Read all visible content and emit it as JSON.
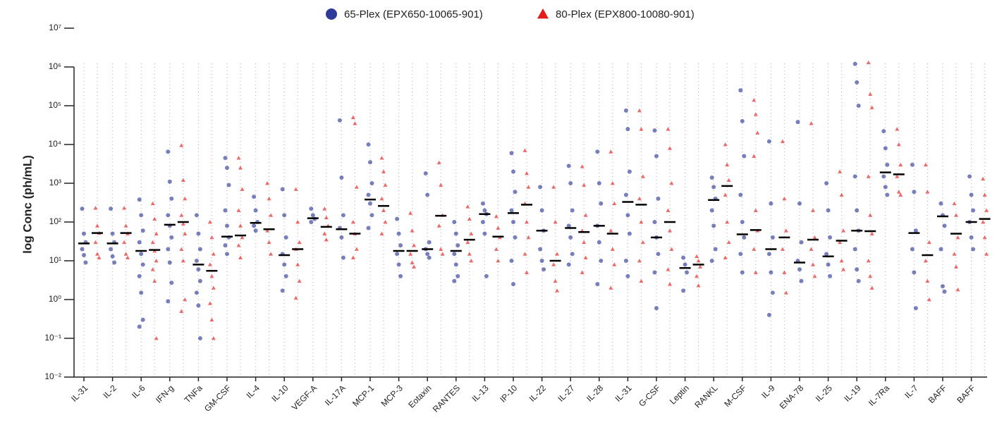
{
  "chart_data": {
    "type": "strip",
    "y_label": "log Conc (ph/mL)",
    "log_y": true,
    "grid": true,
    "categories": [
      "IL-31",
      "IL-2",
      "IL-6",
      "IFN-g",
      "TNFa",
      "GM-CSF",
      "IL-4",
      "IL-10",
      "VEGF-A",
      "IL-17A",
      "MCP-1",
      "MCP-3",
      "Eotaxin",
      "RANTES",
      "IL-13",
      "IP-10",
      "IL-22",
      "IL-27",
      "IL-28",
      "IL-31",
      "G-CSF",
      "Leptin",
      "RANKL",
      "M-CSF",
      "IL-9",
      "ENA-78",
      "IL-25",
      "IL-19",
      "IL-7Ra",
      "IL-7",
      "BAFF",
      "BAFF"
    ],
    "ylim": [
      0.01,
      10000000
    ],
    "yticks": [
      {
        "value": 0.01,
        "label": "10⁻²"
      },
      {
        "value": 0.1,
        "label": "10⁻¹"
      },
      {
        "value": 1,
        "label": "10⁰"
      },
      {
        "value": 10,
        "label": "10¹"
      },
      {
        "value": 100,
        "label": "10²"
      },
      {
        "value": 1000,
        "label": "10³"
      },
      {
        "value": 10000,
        "label": "10⁴"
      },
      {
        "value": 100000,
        "label": "10⁵"
      },
      {
        "value": 1000000,
        "label": "10⁶"
      },
      {
        "value": 10000000,
        "label": "10⁷"
      }
    ],
    "series": [
      {
        "name": "65-Plex (EPX650-10065-901)",
        "color": "#2e3a98",
        "marker": "circle",
        "medians": [
          28,
          28,
          18,
          85,
          8,
          42,
          95,
          14,
          125,
          65,
          380,
          18,
          20,
          18,
          160,
          170,
          60,
          70,
          80,
          330,
          40,
          6.5,
          370,
          48,
          20,
          9,
          13,
          60,
          1900,
          52,
          140,
          100
        ],
        "values": [
          [
            220,
            50,
            30,
            20,
            14,
            9
          ],
          [
            220,
            50,
            30,
            20,
            13,
            9
          ],
          [
            380,
            150,
            60,
            30,
            15,
            8,
            4,
            1.5,
            0.3,
            0.2
          ],
          [
            6500,
            1100,
            400,
            150,
            80,
            40,
            20,
            9,
            2.7,
            0.9
          ],
          [
            150,
            50,
            20,
            10,
            6,
            3,
            1.5,
            0.7,
            0.1
          ],
          [
            4500,
            2500,
            900,
            200,
            80,
            40,
            25,
            15
          ],
          [
            450,
            200,
            100,
            80,
            60
          ],
          [
            700,
            150,
            40,
            15,
            8,
            4,
            1.7
          ],
          [
            220,
            150,
            120,
            100
          ],
          [
            42000,
            1400,
            150,
            70,
            40,
            12
          ],
          [
            10000,
            3500,
            1000,
            500,
            300,
            150,
            70
          ],
          [
            120,
            50,
            25,
            15,
            8,
            4
          ],
          [
            1800,
            500,
            30,
            20,
            15,
            12
          ],
          [
            100,
            50,
            25,
            15,
            8,
            4,
            3
          ],
          [
            300,
            200,
            160,
            100,
            50,
            4
          ],
          [
            6000,
            2000,
            600,
            200,
            100,
            40,
            10,
            2.5
          ],
          [
            800,
            200,
            60,
            20,
            10,
            6
          ],
          [
            2800,
            1000,
            200,
            80,
            40,
            15,
            8
          ],
          [
            6500,
            1000,
            300,
            80,
            30,
            10,
            2.5
          ],
          [
            75000,
            25000,
            2000,
            500,
            150,
            50,
            10,
            4
          ],
          [
            23000,
            5000,
            400,
            100,
            40,
            15,
            5,
            0.6
          ],
          [
            12,
            8,
            5,
            1.7
          ],
          [
            1400,
            800,
            400,
            200,
            80,
            20,
            10
          ],
          [
            250000,
            40000,
            5000,
            500,
            100,
            40,
            15,
            5
          ],
          [
            12000,
            300,
            40,
            15,
            5,
            1.5,
            0.4
          ],
          [
            38000,
            300,
            30,
            10,
            6,
            3
          ],
          [
            1000,
            200,
            40,
            15,
            8,
            4
          ],
          [
            1200000,
            400000,
            100000,
            1500,
            200,
            60,
            20,
            6,
            3
          ],
          [
            22000,
            8000,
            3000,
            1500,
            800,
            500
          ],
          [
            3000,
            600,
            60,
            20,
            5,
            0.6
          ],
          [
            300,
            150,
            80,
            20,
            2.2,
            1.6
          ],
          [
            1500,
            500,
            200,
            100,
            40,
            20
          ]
        ]
      },
      {
        "name": "80-Plex (EPX800-10080-901)",
        "color": "#e31b1b",
        "marker": "triangle",
        "medians": [
          52,
          52,
          19,
          100,
          5.5,
          45,
          65,
          20,
          75,
          50,
          260,
          18,
          145,
          35,
          42,
          280,
          10,
          55,
          50,
          280,
          100,
          8,
          850,
          62,
          40,
          35,
          33,
          58,
          1700,
          14,
          50,
          120
        ],
        "values": [
          [
            230,
            80,
            52,
            30,
            15,
            12
          ],
          [
            230,
            80,
            50,
            30,
            15,
            12
          ],
          [
            300,
            120,
            50,
            30,
            18,
            10,
            6,
            3,
            0.1
          ],
          [
            9500,
            1200,
            400,
            150,
            90,
            50,
            20,
            10,
            1,
            0.5
          ],
          [
            100,
            40,
            15,
            8,
            4,
            2,
            0.8,
            0.3,
            0.1
          ],
          [
            4500,
            2500,
            700,
            200,
            80,
            40,
            25,
            12
          ],
          [
            1000,
            400,
            150,
            60,
            30,
            15
          ],
          [
            700,
            100,
            30,
            20,
            8,
            3,
            1.1
          ],
          [
            220,
            130,
            80,
            50,
            35
          ],
          [
            50000,
            35000,
            800,
            100,
            50,
            20,
            12
          ],
          [
            4500,
            2000,
            900,
            400,
            200,
            100,
            50
          ],
          [
            170,
            60,
            25,
            15,
            9,
            7
          ],
          [
            3400,
            900,
            150,
            80,
            20,
            15
          ],
          [
            250,
            120,
            50,
            30,
            15,
            10
          ],
          [
            140,
            70,
            40,
            20,
            10
          ],
          [
            7000,
            1800,
            800,
            300,
            100,
            40,
            15,
            5
          ],
          [
            800,
            100,
            15,
            8,
            3,
            1.7
          ],
          [
            2700,
            900,
            150,
            60,
            30,
            12,
            5
          ],
          [
            6500,
            1000,
            300,
            60,
            20,
            8,
            2
          ],
          [
            75000,
            25000,
            1500,
            400,
            100,
            30,
            10,
            3
          ],
          [
            25000,
            8000,
            1000,
            200,
            60,
            20,
            6,
            2.5
          ],
          [
            13,
            10,
            7,
            4,
            2.3
          ],
          [
            10000,
            3000,
            1200,
            500,
            100,
            30,
            12
          ],
          [
            140000,
            60000,
            20000,
            5000,
            200,
            60,
            20,
            5
          ],
          [
            12000,
            400,
            60,
            20,
            5,
            1.5
          ],
          [
            35000,
            200,
            40,
            20,
            8,
            4
          ],
          [
            2000,
            500,
            60,
            30,
            10,
            6
          ],
          [
            1300000,
            200000,
            90000,
            1500,
            150,
            50,
            10,
            4,
            2
          ],
          [
            25000,
            10000,
            3000,
            1500,
            600,
            500
          ],
          [
            3000,
            600,
            30,
            10,
            3,
            1
          ],
          [
            300,
            150,
            40,
            15,
            7,
            1.8
          ],
          [
            1300,
            500,
            200,
            100,
            40,
            15
          ]
        ]
      }
    ]
  }
}
